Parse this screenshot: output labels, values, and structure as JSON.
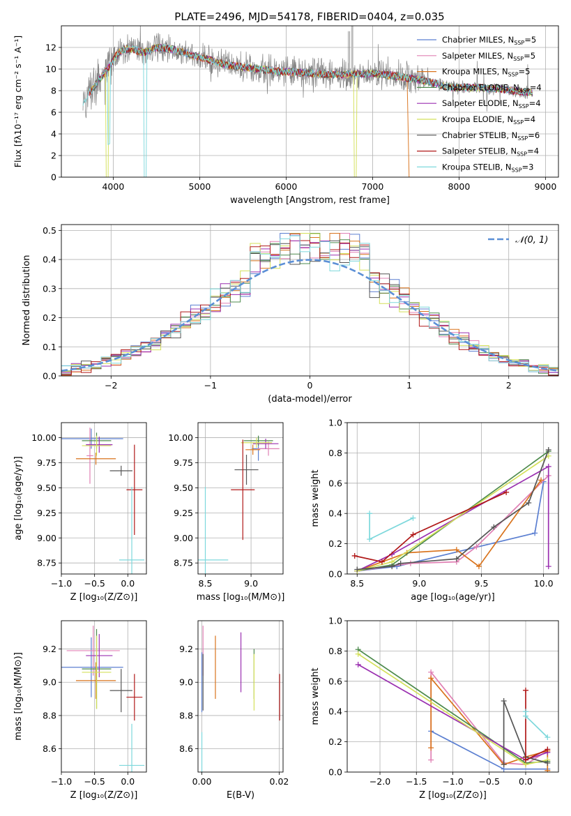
{
  "figure_title": "PLATE=2496, MJD=54178, FIBERID=0404, z=0.035",
  "series": [
    {
      "key": "chab_miles",
      "name_main": "Chabrier MILES, N",
      "name_sub": "SSP",
      "name_tail": "=5",
      "color": "#5b7fd1"
    },
    {
      "key": "salp_miles",
      "name_main": "Salpeter MILES, N",
      "name_sub": "SSP",
      "name_tail": "=5",
      "color": "#e080b4"
    },
    {
      "key": "krou_miles",
      "name_main": "Kroupa MILES, N",
      "name_sub": "SSP",
      "name_tail": "=5",
      "color": "#d9731c"
    },
    {
      "key": "chab_elodie",
      "name_main": "Chabrier ELODIE, N",
      "name_sub": "SSP",
      "name_tail": "=4",
      "color": "#4c8a4c"
    },
    {
      "key": "salp_elodie",
      "name_main": "Salpeter ELODIE, N",
      "name_sub": "SSP",
      "name_tail": "=4",
      "color": "#9a2fb0"
    },
    {
      "key": "krou_elodie",
      "name_main": "Kroupa ELODIE, N",
      "name_sub": "SSP",
      "name_tail": "=4",
      "color": "#d4e05a"
    },
    {
      "key": "chab_stelib",
      "name_main": "Chabrier STELIB, N",
      "name_sub": "SSP",
      "name_tail": "=6",
      "color": "#555555"
    },
    {
      "key": "salp_stelib",
      "name_main": "Salpeter STELIB, N",
      "name_sub": "SSP",
      "name_tail": "=4",
      "color": "#b01818"
    },
    {
      "key": "krou_stelib",
      "name_main": "Kroupa STELIB, N",
      "name_sub": "SSP",
      "name_tail": "=3",
      "color": "#7dd8dc"
    }
  ],
  "chart_data": [
    {
      "id": "spectrum",
      "type": "line",
      "xlabel": "wavelength [Angstrom, rest frame]",
      "ylabel": "Flux [fλ10⁻¹⁷ erg cm⁻² s⁻¹ A⁻¹]",
      "xlim": [
        3400,
        9150
      ],
      "ylim": [
        0,
        14
      ],
      "xticks": [
        4000,
        5000,
        6000,
        7000,
        8000,
        9000
      ],
      "yticks": [
        0,
        2,
        4,
        6,
        8,
        10,
        12
      ],
      "legend": "top-right",
      "observed_color": "#808080",
      "continuum": [
        [
          3650,
          6.6
        ],
        [
          3720,
          7.8
        ],
        [
          3780,
          8.3
        ],
        [
          3840,
          9.1
        ],
        [
          3900,
          9.6
        ],
        [
          3960,
          10.3
        ],
        [
          4020,
          11.1
        ],
        [
          4100,
          11.7
        ],
        [
          4200,
          11.9
        ],
        [
          4350,
          11.5
        ],
        [
          4500,
          12.0
        ],
        [
          4700,
          11.8
        ],
        [
          4900,
          11.3
        ],
        [
          5100,
          10.9
        ],
        [
          5300,
          10.4
        ],
        [
          5500,
          10.2
        ],
        [
          5700,
          10.0
        ],
        [
          5900,
          9.8
        ],
        [
          6100,
          9.7
        ],
        [
          6300,
          9.6
        ],
        [
          6500,
          9.5
        ],
        [
          6700,
          9.5
        ],
        [
          7000,
          9.6
        ],
        [
          7300,
          9.3
        ],
        [
          7600,
          8.9
        ],
        [
          7900,
          8.3
        ],
        [
          8200,
          8.3
        ],
        [
          8500,
          8.1
        ],
        [
          8850,
          7.8
        ]
      ],
      "dips": [
        {
          "s": "krou_elodie",
          "x": 3930,
          "depth": 1
        },
        {
          "s": "krou_stelib",
          "x": 3950,
          "depth": 0.7
        },
        {
          "s": "krou_stelib",
          "x": 4370,
          "depth": 1
        },
        {
          "s": "krou_elodie",
          "x": 6800,
          "depth": 1
        },
        {
          "s": "krou_miles",
          "x": 7420,
          "depth": 1
        }
      ]
    },
    {
      "id": "residuals",
      "type": "histogram",
      "xlabel": "(data-model)/error",
      "ylabel": "Normed distribution",
      "xlim": [
        -2.5,
        2.5
      ],
      "ylim": [
        0,
        0.52
      ],
      "xticks": [
        -2,
        -1,
        0,
        1,
        2
      ],
      "yticks": [
        0.0,
        0.1,
        0.2,
        0.3,
        0.4,
        0.5
      ],
      "bin_width": 0.1,
      "legend": "top-right",
      "reference_label": "𝒩(0, 1)",
      "reference_color": "#5b8fd6"
    },
    {
      "id": "age_vs_Z",
      "type": "scatter",
      "xlabel": "Z [log₁₀(Z/Z⊙)]",
      "ylabel": "age  [log₁₀(age/yr)]",
      "xlim": [
        -1.0,
        0.28
      ],
      "ylim": [
        8.64,
        10.15
      ],
      "xticks": [
        -1.0,
        -0.5,
        0.0
      ],
      "yticks": [
        8.75,
        9.0,
        9.25,
        9.5,
        9.75,
        10.0
      ],
      "points": [
        {
          "s": "chab_miles",
          "x": -0.55,
          "y": 9.99,
          "xerr": 0.48,
          "yerr": 0.1
        },
        {
          "s": "salp_miles",
          "x": -0.57,
          "y": 9.82,
          "xerr": 0.05,
          "yerr": 0.28
        },
        {
          "s": "krou_miles",
          "x": -0.48,
          "y": 9.79,
          "xerr": 0.3,
          "yerr": 0.06
        },
        {
          "s": "chab_elodie",
          "x": -0.47,
          "y": 9.97,
          "xerr": 0.22,
          "yerr": 0.08
        },
        {
          "s": "salp_elodie",
          "x": -0.43,
          "y": 9.93,
          "xerr": 0.2,
          "yerr": 0.08
        },
        {
          "s": "krou_elodie",
          "x": -0.47,
          "y": 9.92,
          "xerr": 0.22,
          "yerr": 0.1
        },
        {
          "s": "chab_stelib",
          "x": -0.1,
          "y": 9.67,
          "xerr": 0.17,
          "yerr": 0.05
        },
        {
          "s": "salp_stelib",
          "x": 0.1,
          "y": 9.48,
          "xerr": 0.12,
          "yerr": 0.45
        },
        {
          "s": "krou_stelib",
          "x": 0.06,
          "y": 8.78,
          "xerr": 0.19,
          "yerr": 0.73
        }
      ]
    },
    {
      "id": "age_vs_mass",
      "type": "scatter",
      "xlabel": "mass [log₁₀(M/M⊙)]",
      "ylabel": "",
      "xlim": [
        8.42,
        9.35
      ],
      "ylim": [
        8.64,
        10.15
      ],
      "xticks": [
        8.5,
        9.0
      ],
      "yticks": [
        8.75,
        9.0,
        9.25,
        9.5,
        9.75,
        10.0
      ],
      "points": [
        {
          "s": "chab_miles",
          "x": 9.08,
          "y": 9.89,
          "xerr": 0.07,
          "yerr": 0.12
        },
        {
          "s": "salp_miles",
          "x": 9.19,
          "y": 9.89,
          "xerr": 0.12,
          "yerr": 0.07
        },
        {
          "s": "krou_miles",
          "x": 9.02,
          "y": 9.88,
          "xerr": 0.08,
          "yerr": 0.05
        },
        {
          "s": "chab_elodie",
          "x": 9.08,
          "y": 9.97,
          "xerr": 0.16,
          "yerr": 0.05
        },
        {
          "s": "salp_elodie",
          "x": 9.16,
          "y": 9.94,
          "xerr": 0.14,
          "yerr": 0.05
        },
        {
          "s": "krou_elodie",
          "x": 9.06,
          "y": 9.95,
          "xerr": 0.17,
          "yerr": 0.05
        },
        {
          "s": "chab_stelib",
          "x": 8.95,
          "y": 9.68,
          "xerr": 0.13,
          "yerr": 0.15
        },
        {
          "s": "salp_stelib",
          "x": 8.91,
          "y": 9.48,
          "xerr": 0.13,
          "yerr": 0.5
        },
        {
          "s": "krou_stelib",
          "x": 8.5,
          "y": 8.78,
          "xerr": 0.25,
          "yerr": 0.73
        }
      ]
    },
    {
      "id": "weights_vs_age",
      "type": "line",
      "xlabel": "age  [log₁₀(age/yr)]",
      "ylabel": "mass weight",
      "xlim": [
        8.42,
        10.12
      ],
      "ylim": [
        0,
        1
      ],
      "xticks": [
        8.5,
        9.0,
        9.5,
        10.0
      ],
      "yticks": [
        0.0,
        0.2,
        0.4,
        0.6,
        0.8,
        1.0
      ],
      "lines": [
        {
          "s": "chab_miles",
          "x": [
            8.5,
            8.82,
            9.93,
            10.0
          ],
          "y": [
            0.02,
            0.05,
            0.27,
            0.61
          ]
        },
        {
          "s": "salp_miles",
          "x": [
            8.5,
            8.93,
            9.3,
            9.46,
            10.04
          ],
          "y": [
            0.02,
            0.07,
            0.08,
            0.18,
            0.65
          ]
        },
        {
          "s": "krou_miles",
          "x": [
            8.5,
            8.9,
            9.3,
            9.48,
            9.98
          ],
          "y": [
            0.02,
            0.14,
            0.16,
            0.05,
            0.62
          ]
        },
        {
          "s": "chab_elodie",
          "x": [
            8.5,
            8.78,
            10.04
          ],
          "y": [
            0.02,
            0.06,
            0.81
          ]
        },
        {
          "s": "salp_elodie",
          "x": [
            8.5,
            8.78,
            10.04,
            10.04
          ],
          "y": [
            0.02,
            0.13,
            0.71,
            0.05
          ]
        },
        {
          "s": "krou_elodie",
          "x": [
            8.5,
            8.78,
            10.04
          ],
          "y": [
            0.02,
            0.08,
            0.78
          ]
        },
        {
          "s": "chab_stelib",
          "x": [
            8.5,
            8.78,
            8.85,
            9.3,
            9.6,
            9.88,
            10.04
          ],
          "y": [
            0.03,
            0.05,
            0.07,
            0.1,
            0.31,
            0.47,
            0.82
          ]
        },
        {
          "s": "salp_stelib",
          "x": [
            8.48,
            8.7,
            8.95,
            9.7
          ],
          "y": [
            0.12,
            0.08,
            0.26,
            0.54
          ]
        },
        {
          "s": "krou_stelib",
          "x": [
            8.6,
            8.6,
            8.95
          ],
          "y": [
            0.4,
            0.23,
            0.37
          ]
        }
      ]
    },
    {
      "id": "mass_vs_Z",
      "type": "scatter",
      "xlabel": "Z [log₁₀(Z/Z⊙)]",
      "ylabel": "mass [log₁₀(M/M⊙)]",
      "xlim": [
        -1.0,
        0.28
      ],
      "ylim": [
        8.46,
        9.37
      ],
      "xticks": [
        -1.0,
        -0.5,
        0.0
      ],
      "yticks": [
        8.6,
        8.8,
        9.0,
        9.2
      ],
      "points": [
        {
          "s": "chab_miles",
          "x": -0.55,
          "y": 9.09,
          "xerr": 0.48,
          "yerr": 0.18
        },
        {
          "s": "salp_miles",
          "x": -0.52,
          "y": 9.19,
          "xerr": 0.4,
          "yerr": 0.15
        },
        {
          "s": "krou_miles",
          "x": -0.48,
          "y": 9.01,
          "xerr": 0.3,
          "yerr": 0.11
        },
        {
          "s": "chab_elodie",
          "x": -0.47,
          "y": 9.08,
          "xerr": 0.22,
          "yerr": 0.24
        },
        {
          "s": "salp_elodie",
          "x": -0.43,
          "y": 9.16,
          "xerr": 0.2,
          "yerr": 0.13
        },
        {
          "s": "krou_elodie",
          "x": -0.47,
          "y": 9.06,
          "xerr": 0.22,
          "yerr": 0.22
        },
        {
          "s": "chab_stelib",
          "x": -0.1,
          "y": 8.95,
          "xerr": 0.17,
          "yerr": 0.13
        },
        {
          "s": "salp_stelib",
          "x": 0.1,
          "y": 8.91,
          "xerr": 0.12,
          "yerr": 0.14
        },
        {
          "s": "krou_stelib",
          "x": 0.06,
          "y": 8.5,
          "xerr": 0.19,
          "yerr": 0.25
        }
      ]
    },
    {
      "id": "mass_vs_EBV",
      "type": "scatter",
      "xlabel": "E(B-V)",
      "ylabel": "",
      "xlim": [
        -0.001,
        0.021
      ],
      "ylim": [
        8.46,
        9.37
      ],
      "xticks": [
        0.0,
        0.02
      ],
      "yticks": [
        8.6,
        8.8,
        9.0,
        9.2
      ],
      "points": [
        {
          "s": "chab_miles",
          "x": 0.0,
          "y": 9.0,
          "xerr": 0,
          "yerr": 0.18
        },
        {
          "s": "salp_miles",
          "x": 0.0003,
          "y": 9.19,
          "xerr": 0,
          "yerr": 0.15
        },
        {
          "s": "krou_miles",
          "x": 0.0035,
          "y": 9.09,
          "xerr": 0,
          "yerr": 0.19
        },
        {
          "s": "chab_elodie",
          "x": 0.0135,
          "y": 9.05,
          "xerr": 0,
          "yerr": 0.15
        },
        {
          "s": "salp_elodie",
          "x": 0.0101,
          "y": 9.12,
          "xerr": 0,
          "yerr": 0.18
        },
        {
          "s": "krou_elodie",
          "x": 0.0135,
          "y": 9.0,
          "xerr": 0,
          "yerr": 0.17
        },
        {
          "s": "chab_stelib",
          "x": 0.0003,
          "y": 9.0,
          "xerr": 0,
          "yerr": 0.17
        },
        {
          "s": "salp_stelib",
          "x": 0.0201,
          "y": 8.91,
          "xerr": 0,
          "yerr": 0.14
        },
        {
          "s": "krou_stelib",
          "x": 0.0,
          "y": 8.5,
          "xerr": 0,
          "yerr": 0.2
        }
      ]
    },
    {
      "id": "weights_vs_Z",
      "type": "line",
      "xlabel": "Z [log₁₀(Z/Z⊙)]",
      "ylabel": "mass weight",
      "xlim": [
        -2.45,
        0.45
      ],
      "ylim": [
        0,
        1
      ],
      "xticks": [
        -2.0,
        -1.5,
        -1.0,
        -0.5,
        0.0
      ],
      "yticks": [
        0.0,
        0.2,
        0.4,
        0.6,
        0.8,
        1.0
      ],
      "lines": [
        {
          "s": "chab_miles",
          "x": [
            -1.3,
            -0.3,
            0.3
          ],
          "y": [
            0.27,
            0.02,
            0.02
          ]
        },
        {
          "s": "salp_miles",
          "x": [
            -1.3,
            -1.3,
            -0.3,
            0.0,
            0.3
          ],
          "y": [
            0.08,
            0.66,
            0.06,
            0.05,
            0.14
          ]
        },
        {
          "s": "krou_miles",
          "x": [
            -1.3,
            -1.3,
            -0.3,
            0.0,
            0.3,
            0.3
          ],
          "y": [
            0.16,
            0.62,
            0.05,
            0.1,
            0.14,
            0.01
          ]
        },
        {
          "s": "chab_elodie",
          "x": [
            -2.3,
            0.0,
            0.3
          ],
          "y": [
            0.81,
            0.06,
            0.07
          ]
        },
        {
          "s": "salp_elodie",
          "x": [
            -2.3,
            0.0,
            0.3
          ],
          "y": [
            0.71,
            0.08,
            0.13
          ]
        },
        {
          "s": "krou_elodie",
          "x": [
            -2.3,
            0.0,
            0.3
          ],
          "y": [
            0.78,
            0.05,
            0.08
          ]
        },
        {
          "s": "chab_stelib",
          "x": [
            -0.3,
            -0.3,
            0.0,
            0.3
          ],
          "y": [
            0.05,
            0.47,
            0.1,
            0.06
          ]
        },
        {
          "s": "salp_stelib",
          "x": [
            0.0,
            0.0,
            0.3
          ],
          "y": [
            0.54,
            0.08,
            0.15
          ]
        },
        {
          "s": "krou_stelib",
          "x": [
            0.3,
            0.0,
            0.0
          ],
          "y": [
            0.23,
            0.37,
            0.4
          ]
        }
      ]
    }
  ]
}
